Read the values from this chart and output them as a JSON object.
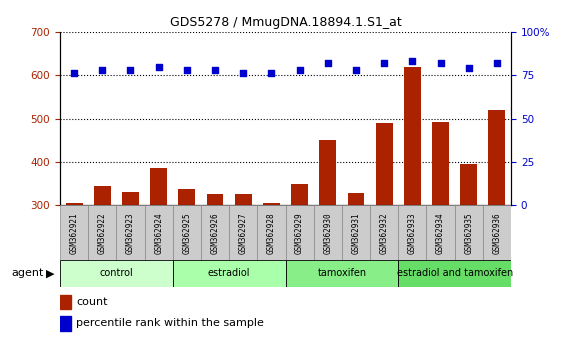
{
  "title": "GDS5278 / MmugDNA.18894.1.S1_at",
  "samples": [
    "GSM362921",
    "GSM362922",
    "GSM362923",
    "GSM362924",
    "GSM362925",
    "GSM362926",
    "GSM362927",
    "GSM362928",
    "GSM362929",
    "GSM362930",
    "GSM362931",
    "GSM362932",
    "GSM362933",
    "GSM362934",
    "GSM362935",
    "GSM362936"
  ],
  "counts": [
    305,
    345,
    330,
    385,
    338,
    325,
    325,
    305,
    350,
    450,
    328,
    490,
    620,
    493,
    395,
    520
  ],
  "percentiles": [
    76,
    78,
    78,
    80,
    78,
    78,
    76,
    76,
    78,
    82,
    78,
    82,
    83,
    82,
    79,
    82
  ],
  "bar_color": "#aa2200",
  "dot_color": "#0000cc",
  "ylim_left": [
    300,
    700
  ],
  "ylim_right": [
    0,
    100
  ],
  "yticks_left": [
    300,
    400,
    500,
    600,
    700
  ],
  "yticks_right": [
    0,
    25,
    50,
    75,
    100
  ],
  "groups": [
    {
      "label": "control",
      "start": 0,
      "end": 4
    },
    {
      "label": "estradiol",
      "start": 4,
      "end": 8
    },
    {
      "label": "tamoxifen",
      "start": 8,
      "end": 12
    },
    {
      "label": "estradiol and tamoxifen",
      "start": 12,
      "end": 16
    }
  ],
  "group_colors": [
    "#ccffcc",
    "#aaffaa",
    "#88ee88",
    "#66dd66"
  ],
  "agent_label": "agent",
  "legend_count": "count",
  "legend_percentile": "percentile rank within the sample",
  "background_color": "#ffffff",
  "sample_box_color": "#cccccc",
  "sample_box_edge": "#aaaaaa"
}
